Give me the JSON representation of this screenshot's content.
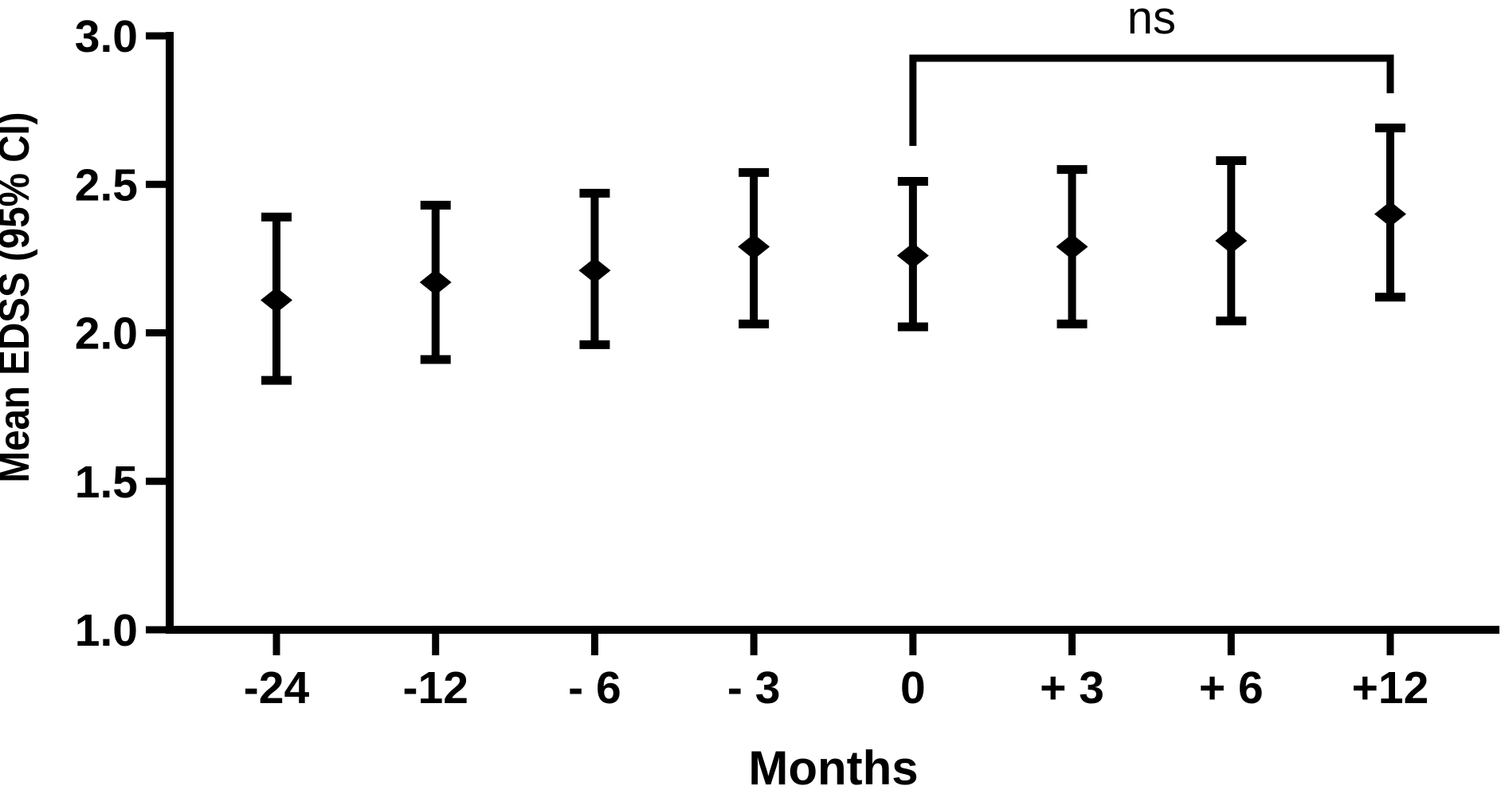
{
  "figure": {
    "background_color": "#ffffff",
    "ink_color": "#000000"
  },
  "chart_data": {
    "type": "scatter",
    "marker": "diamond",
    "title": "",
    "xlabel": "Months",
    "ylabel": "Mean EDSS (95% CI)",
    "categories": [
      "-24",
      "-12",
      "- 6",
      "- 3",
      "0",
      "+ 3",
      "+ 6",
      "+12"
    ],
    "series": [
      {
        "name": "Mean EDSS",
        "values": [
          2.11,
          2.17,
          2.21,
          2.29,
          2.26,
          2.29,
          2.31,
          2.4
        ],
        "ci_lower": [
          1.84,
          1.91,
          1.96,
          2.03,
          2.02,
          2.03,
          2.04,
          2.12
        ],
        "ci_upper": [
          2.39,
          2.43,
          2.47,
          2.54,
          2.51,
          2.55,
          2.58,
          2.69
        ]
      }
    ],
    "error_bars": "95% CI",
    "ylim": [
      1.0,
      3.0
    ],
    "yticks": [
      1.0,
      1.5,
      2.0,
      2.5,
      3.0
    ],
    "ytick_labels": [
      "1.0",
      "1.5",
      "2.0",
      "2.5",
      "3.0"
    ],
    "grid": false,
    "legend": "none",
    "annotation": {
      "text": "ns",
      "meaning": "not significant",
      "from_category": "0",
      "to_category": "+12"
    }
  }
}
